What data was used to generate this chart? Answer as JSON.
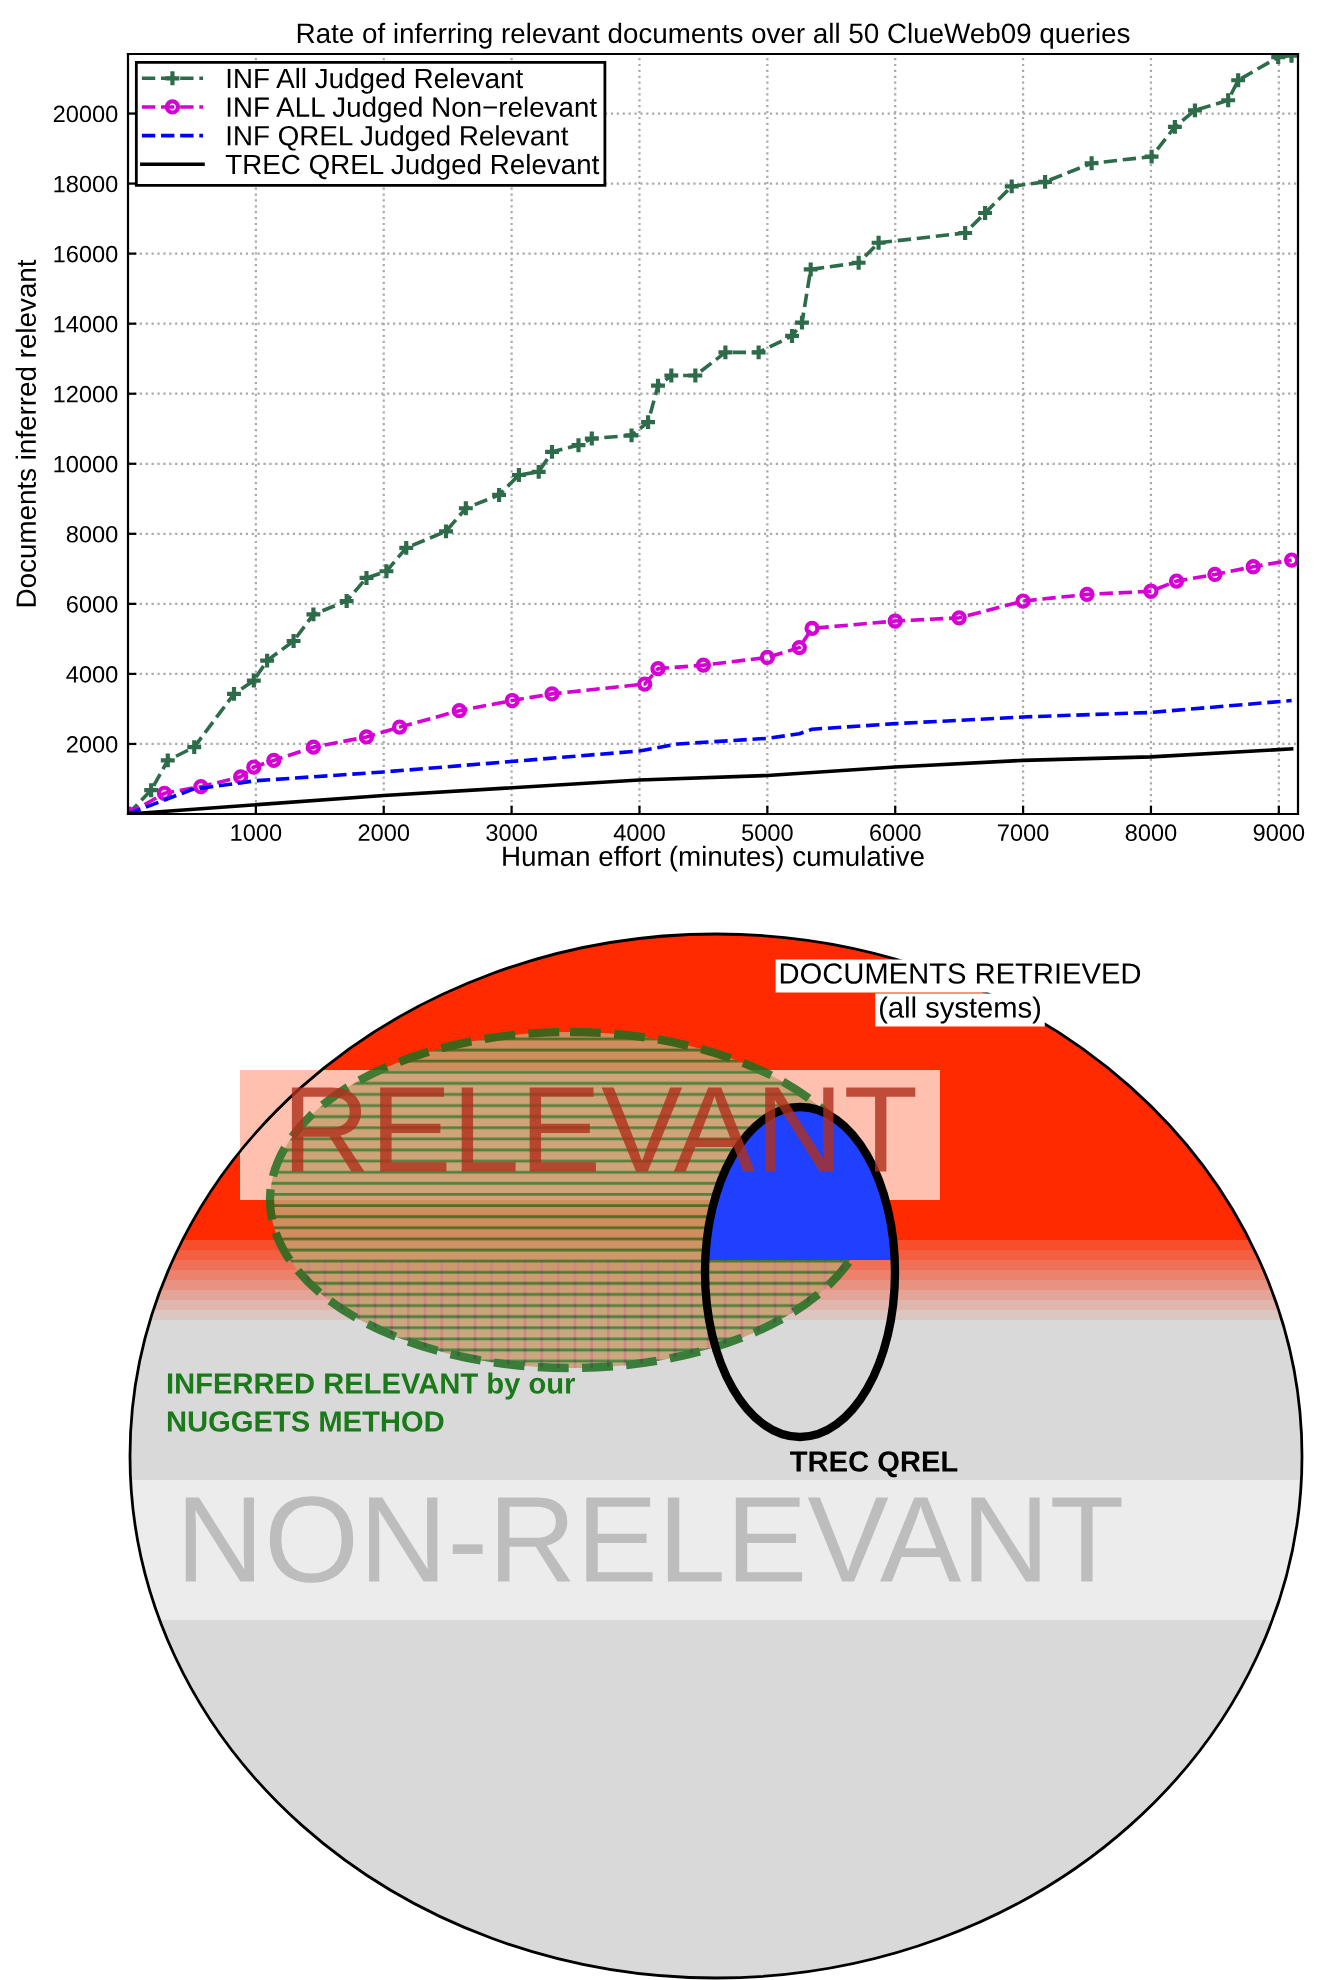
{
  "chart_data": [
    {
      "type": "line",
      "title": "Rate of inferring relevant documents over all 50 ClueWeb09 queries",
      "xlabel": "Human effort (minutes) cumulative",
      "ylabel": "Documents inferred relevant",
      "xlim": [
        0,
        9150
      ],
      "ylim": [
        0,
        21700
      ],
      "xticks": [
        1000,
        2000,
        3000,
        4000,
        5000,
        6000,
        7000,
        8000,
        9000
      ],
      "yticks": [
        2000,
        4000,
        6000,
        8000,
        10000,
        12000,
        14000,
        16000,
        18000,
        20000
      ],
      "grid": true,
      "legend": "top left",
      "series": [
        {
          "name": "INF All Judged Relevant",
          "color": "#2e6b4a",
          "marker": "cross",
          "line_style": "dashed",
          "x": [
            0,
            181,
            311,
            518,
            829,
            984,
            1088,
            1295,
            1450,
            1710,
            1865,
            2021,
            2176,
            2487,
            2642,
            2902,
            3057,
            3212,
            3316,
            3523,
            3627,
            3938,
            4067,
            4145,
            4249,
            4437,
            4672,
            4932,
            5193,
            5271,
            5339,
            5714,
            5870,
            6547,
            6703,
            6911,
            7172,
            7536,
            8005,
            8187,
            8344,
            8604,
            8682,
            8995,
            9099
          ],
          "values": [
            0,
            680,
            1530,
            1910,
            3430,
            3810,
            4380,
            4940,
            5700,
            6080,
            6740,
            6930,
            7600,
            8070,
            8730,
            9110,
            9680,
            9770,
            10340,
            10530,
            10720,
            10810,
            11190,
            12230,
            12520,
            12520,
            13180,
            13180,
            13650,
            14030,
            15550,
            15740,
            16310,
            16590,
            17160,
            17920,
            18050,
            18580,
            18770,
            19620,
            20090,
            20380,
            20950,
            21610,
            21650
          ]
        },
        {
          "name": "INF ALL Judged Non−relevant",
          "color": "#d400d4",
          "marker": "circle",
          "line_style": "dashed",
          "x": [
            0,
            285,
            570,
            881,
            984,
            1140,
            1450,
            1865,
            2124,
            2591,
            3005,
            3316,
            4041,
            4145,
            4500,
            5000,
            5250,
            5350,
            6000,
            6500,
            7000,
            7500,
            8000,
            8200,
            8500,
            8800,
            9100
          ],
          "values": [
            0,
            590,
            780,
            1060,
            1340,
            1530,
            1910,
            2200,
            2480,
            2950,
            3240,
            3430,
            3710,
            4150,
            4250,
            4470,
            4750,
            5300,
            5510,
            5600,
            6080,
            6270,
            6360,
            6650,
            6840,
            7060,
            7250
          ]
        },
        {
          "name": "INF QREL Judged Relevant",
          "color": "#0000ff",
          "marker": "none",
          "line_style": "dashed",
          "x": [
            0,
            500,
            1000,
            2000,
            3000,
            4000,
            4300,
            5000,
            5250,
            5350,
            6000,
            7000,
            8000,
            9100
          ],
          "values": [
            0,
            700,
            950,
            1200,
            1500,
            1800,
            2000,
            2160,
            2290,
            2420,
            2580,
            2770,
            2900,
            3240
          ]
        },
        {
          "name": "TREC QREL Judged Relevant",
          "color": "#000000",
          "marker": "none",
          "line_style": "solid",
          "x": [
            0,
            2000,
            4000,
            5000,
            6000,
            7000,
            8000,
            9100
          ],
          "values": [
            0,
            530,
            970,
            1100,
            1340,
            1530,
            1630,
            1860
          ]
        }
      ]
    },
    {
      "type": "other",
      "annotations": [
        "DOCUMENTS RETRIEVED",
        "(all systems)",
        "RELEVANT",
        "INFERRED RELEVANT by our",
        "NUGGETS METHOD",
        "TREC QREL",
        "NON-RELEVANT"
      ]
    }
  ]
}
